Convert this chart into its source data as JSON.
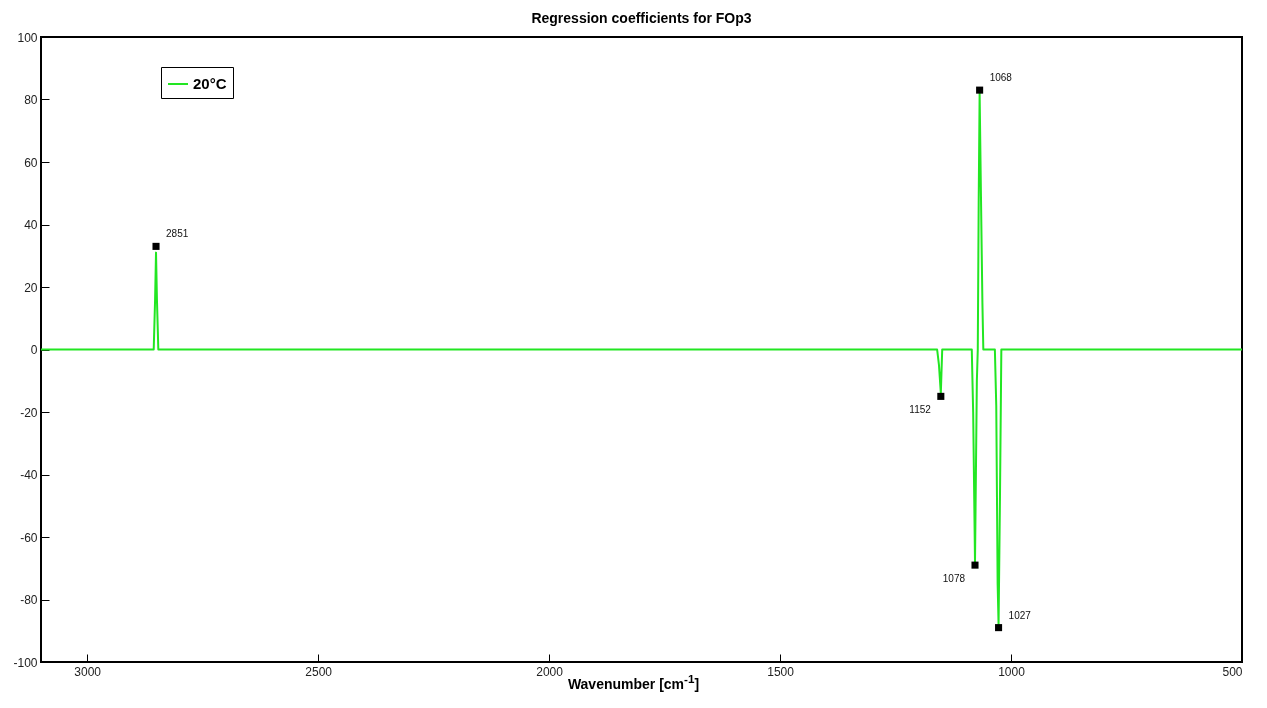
{
  "chart_data": {
    "type": "line",
    "title": "Regression coefficients for FOp3",
    "xlabel": "Wavenumber [cm$^{-1}$]",
    "x": [
      3100,
      2856,
      2853,
      2851,
      2849,
      2846,
      1160,
      1156,
      1152,
      1149,
      1085,
      1082,
      1078,
      1074,
      1072,
      1070,
      1068,
      1065,
      1062,
      1060,
      1035,
      1032,
      1029,
      1027,
      1024,
      1021,
      500
    ],
    "series": [
      {
        "name": "20°C",
        "color": "#22e622",
        "values": [
          0,
          0,
          16,
          31,
          16,
          0,
          0,
          -5,
          -14,
          0,
          0,
          -20,
          -68,
          -10,
          0,
          48,
          82,
          48,
          15,
          0,
          0,
          -18,
          -75,
          -88,
          -48,
          0,
          0
        ]
      }
    ],
    "annotations": [
      {
        "text": "2851",
        "x": 2851,
        "y": 33
      },
      {
        "text": "1068",
        "x": 1068,
        "y": 83
      },
      {
        "text": "1152",
        "x": 1152,
        "y": -15
      },
      {
        "text": "1078",
        "x": 1078,
        "y": -69
      },
      {
        "text": "1027",
        "x": 1027,
        "y": -89
      }
    ],
    "xlim": [
      3100,
      500
    ],
    "xticks": [
      3000,
      2500,
      2000,
      1500,
      1000,
      500
    ],
    "ylim": [
      -100,
      100
    ],
    "yticks": [
      -100,
      -80,
      -60,
      -40,
      -20,
      0,
      20,
      40,
      60,
      80,
      100
    ],
    "grid": false,
    "legend": "top left",
    "marker": "none",
    "line_style": "solid"
  }
}
